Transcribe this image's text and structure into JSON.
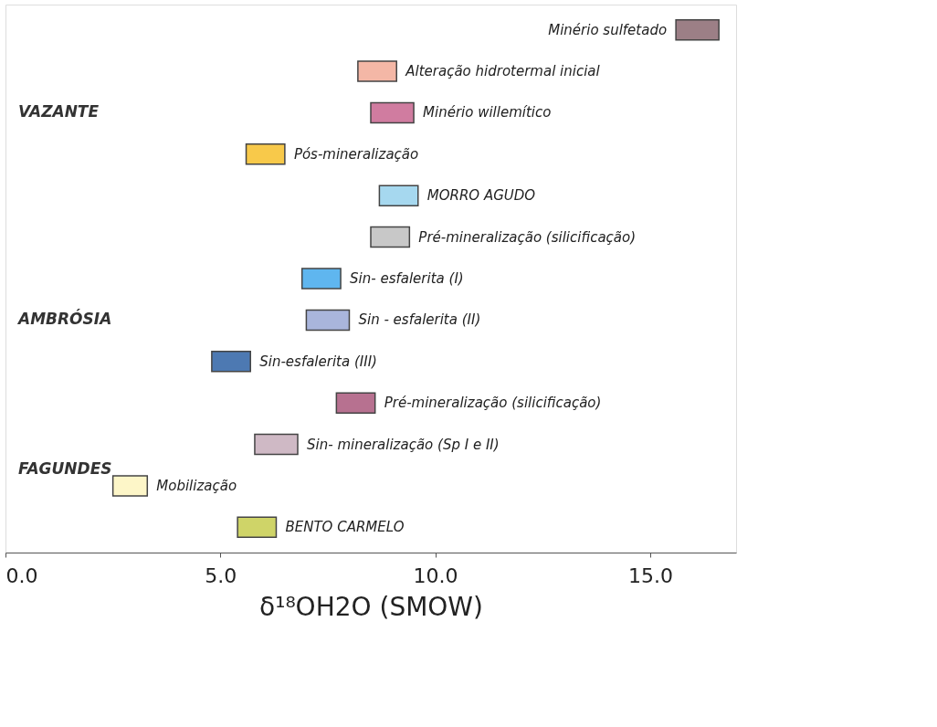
{
  "chart_data": {
    "type": "bar",
    "orientation": "horizontal",
    "xlabel": "δ¹⁸OH2O (SMOW)",
    "categories": [
      "Minério sulfetado",
      "Alteração hidrotermal inicial",
      "Minério willemítico",
      "Pós-mineralização",
      "MORRO AGUDO",
      "Pré-mineralização (silicificação)",
      "Sin- esfalerita (I)",
      "Sin - esfalerita (II)",
      "Sin-esfalerita (III)",
      "Pré-mineralização (silicificação)",
      "Sin- mineralização (Sp I e II)",
      "Mobilização",
      "BENTO CARMELO"
    ],
    "base": [
      15.6,
      8.2,
      8.5,
      5.6,
      8.7,
      8.5,
      6.9,
      7.0,
      4.8,
      7.7,
      5.8,
      2.5,
      5.4
    ],
    "values": [
      1.0,
      0.9,
      1.0,
      0.9,
      0.9,
      0.9,
      0.9,
      1.0,
      0.9,
      0.9,
      1.0,
      0.8,
      0.9
    ],
    "colors": [
      "#9c7f86",
      "#f4b7a6",
      "#d07ca0",
      "#f8c94a",
      "#a6d8ef",
      "#c8c8c8",
      "#5fb6ef",
      "#a9b5dc",
      "#4d79b2",
      "#b77190",
      "#cfb9c5",
      "#fdf6c8",
      "#cfd468"
    ],
    "xlim": [
      0,
      17
    ],
    "xticks": [
      {
        "value": 0,
        "label": "0.0"
      },
      {
        "value": 5,
        "label": "5.0"
      },
      {
        "value": 10,
        "label": "10.0"
      },
      {
        "value": 15,
        "label": "15.0"
      }
    ],
    "annotations": [
      "VAZANTE",
      "AMBRÓSIA",
      "FAGUNDES"
    ],
    "grid": false
  }
}
